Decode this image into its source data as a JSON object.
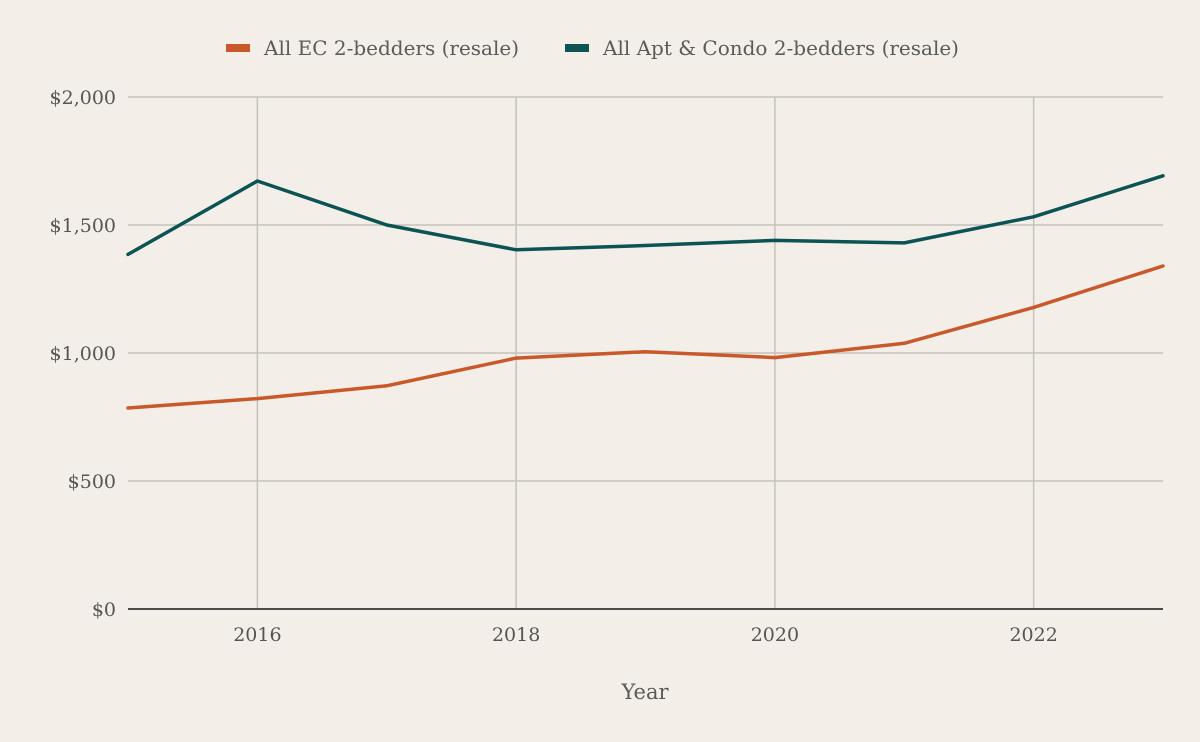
{
  "chart_data": {
    "type": "line",
    "x": [
      2015,
      2016,
      2017,
      2018,
      2019,
      2020,
      2021,
      2022,
      2023
    ],
    "xticks": [
      2016,
      2018,
      2020,
      2022
    ],
    "xlim": [
      2015,
      2023
    ],
    "ylim": [
      0,
      2000
    ],
    "yticks": [
      0,
      500,
      1000,
      1500,
      2000
    ],
    "yticks_labels": [
      "$0",
      "$500",
      "$1,000",
      "$1,500",
      "$2,000"
    ],
    "xlabel": "Year",
    "ylabel": "",
    "grid": true,
    "legend_position": "top-center",
    "series": [
      {
        "name": "All EC 2-bedders (resale)",
        "color": "#c9582a",
        "values": [
          785,
          822,
          872,
          980,
          1005,
          982,
          1038,
          1178,
          1340
        ]
      },
      {
        "name": "All Apt & Condo 2-bedders (resale)",
        "color": "#0c5454",
        "values": [
          1385,
          1672,
          1500,
          1403,
          1420,
          1440,
          1430,
          1532,
          1692
        ]
      }
    ]
  }
}
